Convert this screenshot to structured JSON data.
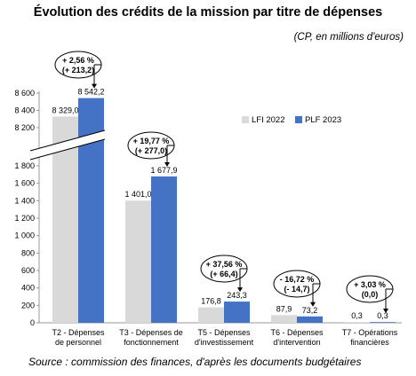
{
  "title": "Évolution des crédits de la mission par titre de dépenses",
  "subtitle": "(CP, en millions d'euros)",
  "source": "Source : commission des finances, d'après les documents budgétaires",
  "colors": {
    "lfi": "#d9d9d9",
    "plf": "#4472c4"
  },
  "chart_data": {
    "type": "bar",
    "title": "Évolution des crédits de la mission par titre de dépenses",
    "ylabel": "",
    "xlabel": "",
    "axis_break": {
      "lower": [
        0,
        1800
      ],
      "upper": [
        8200,
        8600
      ]
    },
    "y_ticks_lower": [
      "0",
      "200",
      "400",
      "600",
      "800",
      "1 000",
      "1 200",
      "1 400",
      "1 600",
      "1 800"
    ],
    "y_ticks_upper": [
      "8 200",
      "8 400",
      "8 600"
    ],
    "categories": [
      [
        "T2 - Dépenses",
        "de personnel"
      ],
      [
        "T3 - Dépenses de",
        "fonctionnement"
      ],
      [
        "T5 - Dépenses",
        "d'investissement"
      ],
      [
        "T6 - Dépenses",
        "d'intervention"
      ],
      [
        "T7 - Opérations",
        "financières"
      ]
    ],
    "series": [
      {
        "name": "LFI 2022",
        "values": [
          8329.0,
          1401.0,
          176.8,
          87.9,
          0.3
        ],
        "labels": [
          "8 329,0",
          "1 401,0",
          "176,8",
          "87,9",
          "0,3"
        ]
      },
      {
        "name": "PLF 2023",
        "values": [
          8542.2,
          1677.9,
          243.3,
          73.2,
          0.3
        ],
        "labels": [
          "8 542,2",
          "1 677,9",
          "243,3",
          "73,2",
          "0,3"
        ]
      }
    ],
    "annotations": [
      {
        "pct": "+ 2,56 %",
        "abs": "(+ 213,2)"
      },
      {
        "pct": "+ 19,77 %",
        "abs": "(+ 277,0)"
      },
      {
        "pct": "+ 37,56 %",
        "abs": "(+ 66,4)"
      },
      {
        "pct": "- 16,72 %",
        "abs": "(- 14,7)"
      },
      {
        "pct": "+ 3,03 %",
        "abs": "(0,0)"
      }
    ],
    "legend_position": "right"
  }
}
